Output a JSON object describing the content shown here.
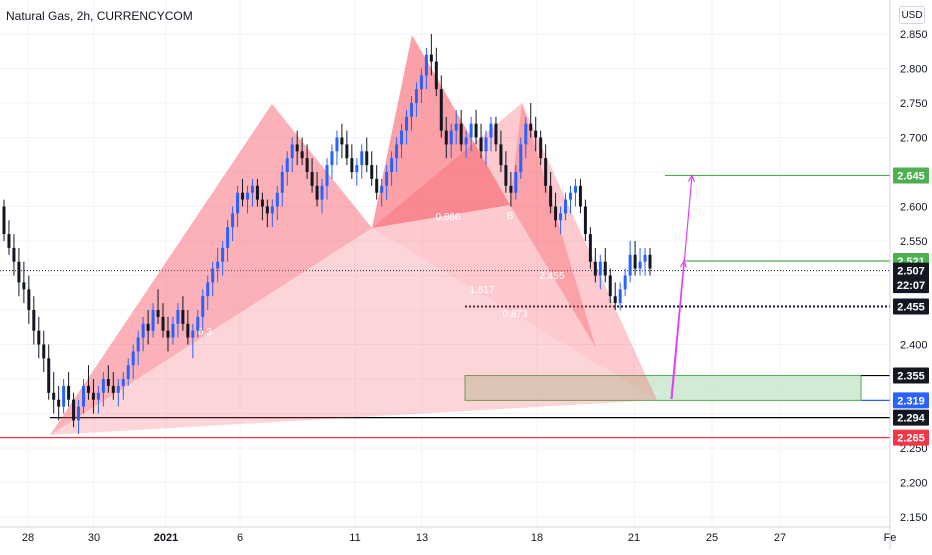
{
  "header": {
    "title": "Natural Gas, 2h, CURRENCYCOM",
    "currency": "USD"
  },
  "colors": {
    "up": "#2962ff",
    "down": "#131722",
    "pattern_fill": "#f7525f",
    "target_line": "#4caf50",
    "zone_fill": "#c8e6c9",
    "arrow": "#e040fb",
    "stop_line": "#f23645",
    "level_black": "#000000",
    "entry_label": "#2962ff"
  },
  "chart_data": {
    "type": "candlestick",
    "title": "Natural Gas, 2h, CURRENCYCOM",
    "x_ticks": [
      "28",
      "30",
      "2021",
      "6",
      "11",
      "13",
      "18",
      "21",
      "25",
      "27",
      "Fe"
    ],
    "y_ticks": [
      "2.850",
      "2.800",
      "2.750",
      "2.700",
      "2.650",
      "2.600",
      "2.550",
      "2.500",
      "2.450",
      "2.400",
      "2.350",
      "2.300",
      "2.250",
      "2.200",
      "2.150"
    ],
    "ylim": [
      2.14,
      2.87
    ],
    "price_labels": [
      {
        "id": "target",
        "text": "2.645",
        "value": 2.645,
        "style": "green"
      },
      {
        "id": "tp1",
        "text": "2.521",
        "value": 2.521,
        "style": "green"
      },
      {
        "id": "last",
        "text": "2.507",
        "value": 2.507,
        "style": "black"
      },
      {
        "id": "countdown",
        "text": "22:07",
        "value": 2.486,
        "style": "black"
      },
      {
        "id": "low",
        "text": "2.455",
        "value": 2.455,
        "style": "black"
      },
      {
        "id": "zone_top",
        "text": "2.355",
        "value": 2.355,
        "style": "black"
      },
      {
        "id": "entry",
        "text": "2.319",
        "value": 2.319,
        "style": "blue"
      },
      {
        "id": "support",
        "text": "2.294",
        "value": 2.294,
        "style": "black"
      },
      {
        "id": "stop",
        "text": "2.265",
        "value": 2.265,
        "style": "red"
      }
    ],
    "pattern_labels": [
      "0.866",
      "B",
      "2.455",
      "1.617",
      "0.873",
      "0.3"
    ],
    "candles": [
      [
        2.6,
        2.61,
        2.55,
        2.56
      ],
      [
        2.56,
        2.58,
        2.53,
        2.54
      ],
      [
        2.54,
        2.56,
        2.5,
        2.52
      ],
      [
        2.52,
        2.54,
        2.47,
        2.49
      ],
      [
        2.49,
        2.52,
        2.46,
        2.48
      ],
      [
        2.48,
        2.5,
        2.43,
        2.45
      ],
      [
        2.45,
        2.47,
        2.4,
        2.42
      ],
      [
        2.42,
        2.44,
        2.38,
        2.4
      ],
      [
        2.4,
        2.42,
        2.36,
        2.38
      ],
      [
        2.38,
        2.4,
        2.32,
        2.33
      ],
      [
        2.33,
        2.36,
        2.3,
        2.32
      ],
      [
        2.32,
        2.34,
        2.29,
        2.31
      ],
      [
        2.31,
        2.35,
        2.3,
        2.34
      ],
      [
        2.34,
        2.36,
        2.31,
        2.32
      ],
      [
        2.32,
        2.33,
        2.28,
        2.29
      ],
      [
        2.29,
        2.32,
        2.27,
        2.31
      ],
      [
        2.31,
        2.35,
        2.3,
        2.34
      ],
      [
        2.34,
        2.37,
        2.32,
        2.33
      ],
      [
        2.33,
        2.35,
        2.3,
        2.32
      ],
      [
        2.32,
        2.34,
        2.3,
        2.33
      ],
      [
        2.33,
        2.36,
        2.31,
        2.35
      ],
      [
        2.35,
        2.37,
        2.33,
        2.34
      ],
      [
        2.34,
        2.36,
        2.32,
        2.33
      ],
      [
        2.33,
        2.35,
        2.31,
        2.34
      ],
      [
        2.34,
        2.36,
        2.32,
        2.35
      ],
      [
        2.35,
        2.38,
        2.34,
        2.37
      ],
      [
        2.37,
        2.4,
        2.35,
        2.39
      ],
      [
        2.39,
        2.42,
        2.37,
        2.41
      ],
      [
        2.41,
        2.44,
        2.39,
        2.43
      ],
      [
        2.43,
        2.45,
        2.4,
        2.42
      ],
      [
        2.42,
        2.46,
        2.41,
        2.45
      ],
      [
        2.45,
        2.48,
        2.43,
        2.44
      ],
      [
        2.44,
        2.46,
        2.41,
        2.42
      ],
      [
        2.42,
        2.44,
        2.39,
        2.41
      ],
      [
        2.41,
        2.44,
        2.4,
        2.43
      ],
      [
        2.43,
        2.46,
        2.41,
        2.45
      ],
      [
        2.45,
        2.47,
        2.42,
        2.43
      ],
      [
        2.43,
        2.45,
        2.4,
        2.41
      ],
      [
        2.41,
        2.43,
        2.38,
        2.42
      ],
      [
        2.42,
        2.45,
        2.41,
        2.44
      ],
      [
        2.44,
        2.48,
        2.42,
        2.47
      ],
      [
        2.47,
        2.5,
        2.45,
        2.49
      ],
      [
        2.49,
        2.52,
        2.47,
        2.51
      ],
      [
        2.51,
        2.54,
        2.49,
        2.52
      ],
      [
        2.52,
        2.55,
        2.5,
        2.54
      ],
      [
        2.54,
        2.58,
        2.52,
        2.57
      ],
      [
        2.57,
        2.6,
        2.55,
        2.59
      ],
      [
        2.59,
        2.63,
        2.57,
        2.62
      ],
      [
        2.62,
        2.64,
        2.6,
        2.61
      ],
      [
        2.61,
        2.63,
        2.59,
        2.62
      ],
      [
        2.62,
        2.64,
        2.6,
        2.63
      ],
      [
        2.63,
        2.64,
        2.6,
        2.61
      ],
      [
        2.61,
        2.62,
        2.58,
        2.6
      ],
      [
        2.6,
        2.61,
        2.57,
        2.59
      ],
      [
        2.59,
        2.61,
        2.57,
        2.6
      ],
      [
        2.6,
        2.63,
        2.58,
        2.62
      ],
      [
        2.62,
        2.66,
        2.6,
        2.65
      ],
      [
        2.65,
        2.68,
        2.63,
        2.67
      ],
      [
        2.67,
        2.7,
        2.65,
        2.69
      ],
      [
        2.69,
        2.71,
        2.66,
        2.68
      ],
      [
        2.68,
        2.7,
        2.66,
        2.67
      ],
      [
        2.67,
        2.69,
        2.64,
        2.65
      ],
      [
        2.65,
        2.67,
        2.62,
        2.63
      ],
      [
        2.63,
        2.65,
        2.6,
        2.61
      ],
      [
        2.61,
        2.64,
        2.59,
        2.63
      ],
      [
        2.63,
        2.67,
        2.61,
        2.66
      ],
      [
        2.66,
        2.69,
        2.64,
        2.68
      ],
      [
        2.68,
        2.71,
        2.66,
        2.7
      ],
      [
        2.7,
        2.72,
        2.67,
        2.69
      ],
      [
        2.69,
        2.71,
        2.66,
        2.67
      ],
      [
        2.67,
        2.69,
        2.64,
        2.65
      ],
      [
        2.65,
        2.67,
        2.63,
        2.66
      ],
      [
        2.66,
        2.69,
        2.64,
        2.68
      ],
      [
        2.68,
        2.7,
        2.65,
        2.66
      ],
      [
        2.66,
        2.68,
        2.63,
        2.64
      ],
      [
        2.64,
        2.66,
        2.61,
        2.62
      ],
      [
        2.62,
        2.64,
        2.6,
        2.63
      ],
      [
        2.63,
        2.66,
        2.61,
        2.65
      ],
      [
        2.65,
        2.68,
        2.63,
        2.67
      ],
      [
        2.67,
        2.7,
        2.65,
        2.69
      ],
      [
        2.69,
        2.72,
        2.67,
        2.71
      ],
      [
        2.71,
        2.74,
        2.69,
        2.73
      ],
      [
        2.73,
        2.76,
        2.71,
        2.75
      ],
      [
        2.75,
        2.78,
        2.73,
        2.77
      ],
      [
        2.77,
        2.8,
        2.75,
        2.79
      ],
      [
        2.79,
        2.83,
        2.77,
        2.82
      ],
      [
        2.82,
        2.85,
        2.79,
        2.81
      ],
      [
        2.81,
        2.83,
        2.76,
        2.77
      ],
      [
        2.77,
        2.79,
        2.7,
        2.71
      ],
      [
        2.71,
        2.73,
        2.67,
        2.69
      ],
      [
        2.69,
        2.72,
        2.67,
        2.71
      ],
      [
        2.71,
        2.74,
        2.69,
        2.72
      ],
      [
        2.72,
        2.74,
        2.68,
        2.69
      ],
      [
        2.69,
        2.71,
        2.67,
        2.7
      ],
      [
        2.7,
        2.73,
        2.68,
        2.72
      ],
      [
        2.72,
        2.74,
        2.69,
        2.7
      ],
      [
        2.7,
        2.72,
        2.67,
        2.68
      ],
      [
        2.68,
        2.71,
        2.66,
        2.7
      ],
      [
        2.7,
        2.73,
        2.68,
        2.72
      ],
      [
        2.72,
        2.73,
        2.68,
        2.69
      ],
      [
        2.69,
        2.71,
        2.65,
        2.66
      ],
      [
        2.66,
        2.68,
        2.62,
        2.63
      ],
      [
        2.63,
        2.65,
        2.6,
        2.62
      ],
      [
        2.62,
        2.66,
        2.61,
        2.65
      ],
      [
        2.65,
        2.7,
        2.64,
        2.69
      ],
      [
        2.69,
        2.73,
        2.67,
        2.72
      ],
      [
        2.72,
        2.75,
        2.7,
        2.71
      ],
      [
        2.71,
        2.73,
        2.68,
        2.7
      ],
      [
        2.7,
        2.71,
        2.66,
        2.67
      ],
      [
        2.67,
        2.69,
        2.62,
        2.63
      ],
      [
        2.63,
        2.65,
        2.59,
        2.6
      ],
      [
        2.6,
        2.62,
        2.57,
        2.58
      ],
      [
        2.58,
        2.6,
        2.56,
        2.59
      ],
      [
        2.59,
        2.62,
        2.58,
        2.61
      ],
      [
        2.61,
        2.63,
        2.59,
        2.62
      ],
      [
        2.62,
        2.64,
        2.6,
        2.63
      ],
      [
        2.63,
        2.64,
        2.59,
        2.6
      ],
      [
        2.6,
        2.61,
        2.55,
        2.56
      ],
      [
        2.56,
        2.57,
        2.51,
        2.52
      ],
      [
        2.52,
        2.54,
        2.49,
        2.5
      ],
      [
        2.5,
        2.53,
        2.48,
        2.52
      ],
      [
        2.52,
        2.54,
        2.49,
        2.5
      ],
      [
        2.5,
        2.51,
        2.46,
        2.47
      ],
      [
        2.47,
        2.49,
        2.45,
        2.46
      ],
      [
        2.46,
        2.49,
        2.45,
        2.48
      ],
      [
        2.48,
        2.51,
        2.47,
        2.5
      ],
      [
        2.5,
        2.55,
        2.49,
        2.53
      ],
      [
        2.53,
        2.55,
        2.5,
        2.51
      ],
      [
        2.51,
        2.54,
        2.5,
        2.52
      ],
      [
        2.52,
        2.54,
        2.5,
        2.53
      ],
      [
        2.53,
        2.54,
        2.5,
        2.51
      ]
    ]
  }
}
